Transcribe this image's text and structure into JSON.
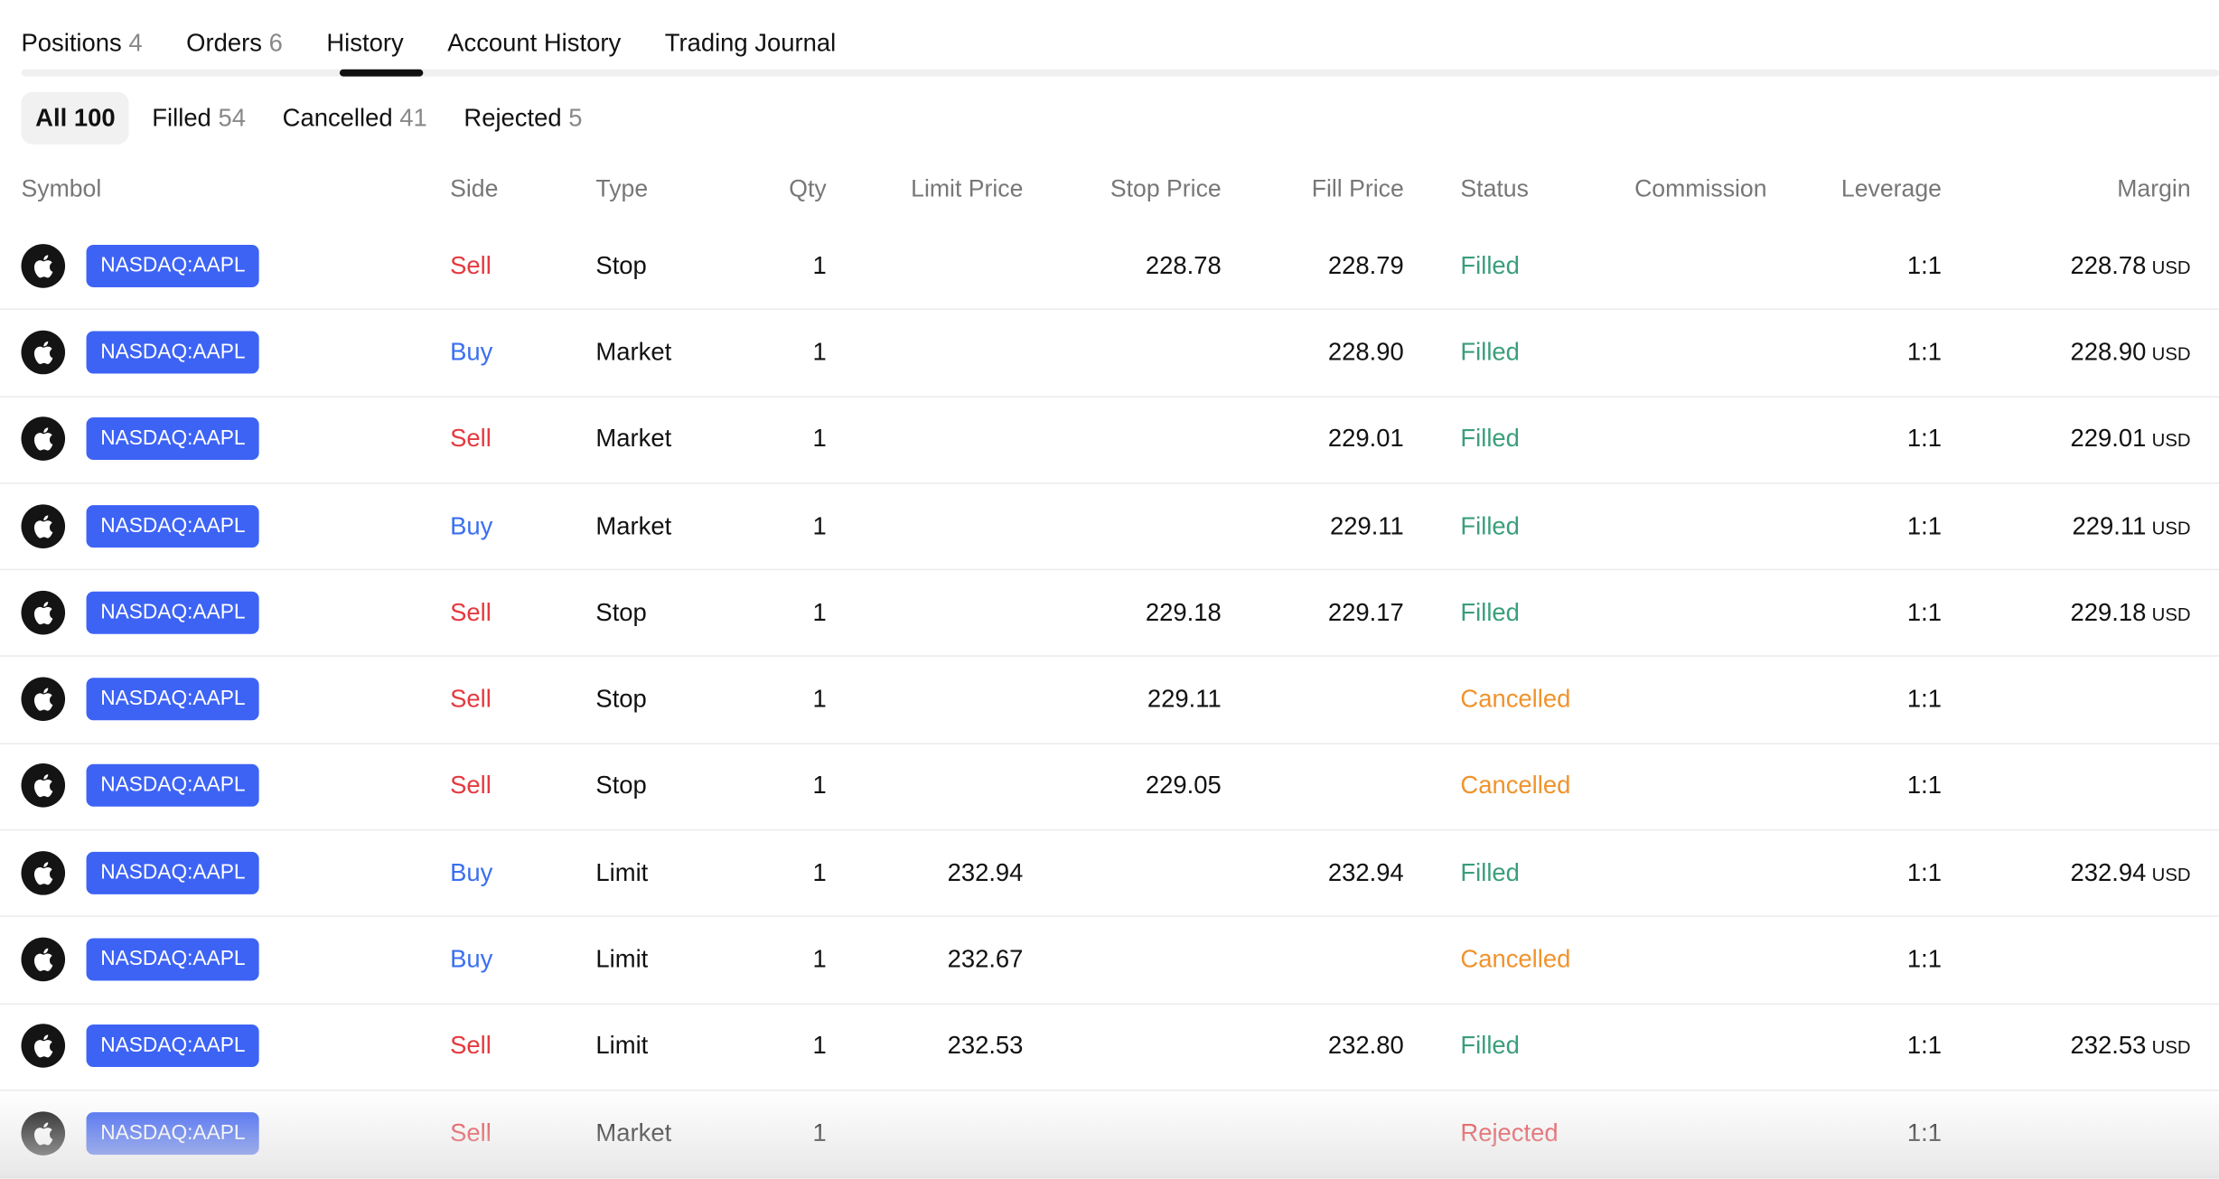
{
  "tabs": [
    {
      "label": "Positions",
      "count": "4"
    },
    {
      "label": "Orders",
      "count": "6"
    },
    {
      "label": "History",
      "count": ""
    },
    {
      "label": "Account History",
      "count": ""
    },
    {
      "label": "Trading Journal",
      "count": ""
    }
  ],
  "active_tab": "History",
  "filters": [
    {
      "label": "All",
      "count": "100"
    },
    {
      "label": "Filled",
      "count": "54"
    },
    {
      "label": "Cancelled",
      "count": "41"
    },
    {
      "label": "Rejected",
      "count": "5"
    }
  ],
  "columns": {
    "symbol": "Symbol",
    "side": "Side",
    "type": "Type",
    "qty": "Qty",
    "limit": "Limit Price",
    "stop": "Stop Price",
    "fill": "Fill Price",
    "status": "Status",
    "commission": "Commission",
    "leverage": "Leverage",
    "margin": "Margin"
  },
  "colors": {
    "badge": "#3d63f5",
    "sell": "#e5393f",
    "buy": "#3a6ff0",
    "filled": "#3a9e7a",
    "cancelled": "#f0932b",
    "rejected": "#e5393f"
  },
  "rows": [
    {
      "symbol": "NASDAQ:AAPL",
      "side": "Sell",
      "type": "Stop",
      "qty": "1",
      "limit": "",
      "stop": "228.78",
      "fill": "228.79",
      "status": "Filled",
      "commission": "",
      "leverage": "1:1",
      "margin": "228.78",
      "currency": "USD"
    },
    {
      "symbol": "NASDAQ:AAPL",
      "side": "Buy",
      "type": "Market",
      "qty": "1",
      "limit": "",
      "stop": "",
      "fill": "228.90",
      "status": "Filled",
      "commission": "",
      "leverage": "1:1",
      "margin": "228.90",
      "currency": "USD"
    },
    {
      "symbol": "NASDAQ:AAPL",
      "side": "Sell",
      "type": "Market",
      "qty": "1",
      "limit": "",
      "stop": "",
      "fill": "229.01",
      "status": "Filled",
      "commission": "",
      "leverage": "1:1",
      "margin": "229.01",
      "currency": "USD"
    },
    {
      "symbol": "NASDAQ:AAPL",
      "side": "Buy",
      "type": "Market",
      "qty": "1",
      "limit": "",
      "stop": "",
      "fill": "229.11",
      "status": "Filled",
      "commission": "",
      "leverage": "1:1",
      "margin": "229.11",
      "currency": "USD"
    },
    {
      "symbol": "NASDAQ:AAPL",
      "side": "Sell",
      "type": "Stop",
      "qty": "1",
      "limit": "",
      "stop": "229.18",
      "fill": "229.17",
      "status": "Filled",
      "commission": "",
      "leverage": "1:1",
      "margin": "229.18",
      "currency": "USD"
    },
    {
      "symbol": "NASDAQ:AAPL",
      "side": "Sell",
      "type": "Stop",
      "qty": "1",
      "limit": "",
      "stop": "229.11",
      "fill": "",
      "status": "Cancelled",
      "commission": "",
      "leverage": "1:1",
      "margin": "",
      "currency": ""
    },
    {
      "symbol": "NASDAQ:AAPL",
      "side": "Sell",
      "type": "Stop",
      "qty": "1",
      "limit": "",
      "stop": "229.05",
      "fill": "",
      "status": "Cancelled",
      "commission": "",
      "leverage": "1:1",
      "margin": "",
      "currency": ""
    },
    {
      "symbol": "NASDAQ:AAPL",
      "side": "Buy",
      "type": "Limit",
      "qty": "1",
      "limit": "232.94",
      "stop": "",
      "fill": "232.94",
      "status": "Filled",
      "commission": "",
      "leverage": "1:1",
      "margin": "232.94",
      "currency": "USD"
    },
    {
      "symbol": "NASDAQ:AAPL",
      "side": "Buy",
      "type": "Limit",
      "qty": "1",
      "limit": "232.67",
      "stop": "",
      "fill": "",
      "status": "Cancelled",
      "commission": "",
      "leverage": "1:1",
      "margin": "",
      "currency": ""
    },
    {
      "symbol": "NASDAQ:AAPL",
      "side": "Sell",
      "type": "Limit",
      "qty": "1",
      "limit": "232.53",
      "stop": "",
      "fill": "232.80",
      "status": "Filled",
      "commission": "",
      "leverage": "1:1",
      "margin": "232.53",
      "currency": "USD"
    },
    {
      "symbol": "NASDAQ:AAPL",
      "side": "Sell",
      "type": "Market",
      "qty": "1",
      "limit": "",
      "stop": "",
      "fill": "",
      "status": "Rejected",
      "commission": "",
      "leverage": "1:1",
      "margin": "",
      "currency": ""
    }
  ]
}
